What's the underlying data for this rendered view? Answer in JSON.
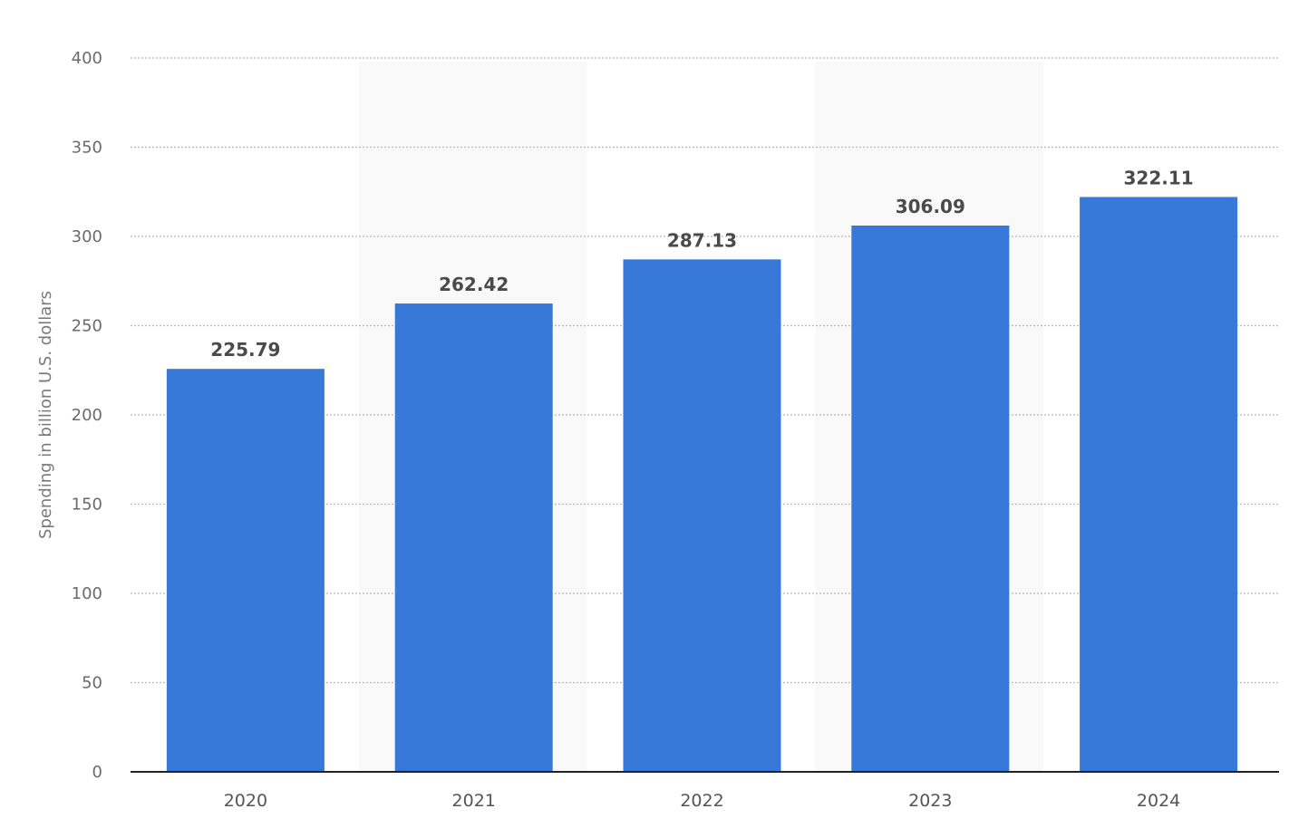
{
  "chart_data": {
    "type": "bar",
    "categories": [
      "2020",
      "2021",
      "2022",
      "2023",
      "2024"
    ],
    "values": [
      225.79,
      262.42,
      287.13,
      306.09,
      322.11
    ],
    "value_labels": [
      "225.79",
      "262.42",
      "287.13",
      "306.09",
      "322.11"
    ],
    "title": "",
    "xlabel": "",
    "ylabel": "Spending in billion U.S. dollars",
    "ylim": [
      0,
      400
    ],
    "yticks": [
      0,
      50,
      100,
      150,
      200,
      250,
      300,
      350,
      400
    ],
    "grid": true,
    "legend": "none",
    "bar_color": "#3878d8",
    "band_color": "#f9f9f9"
  }
}
